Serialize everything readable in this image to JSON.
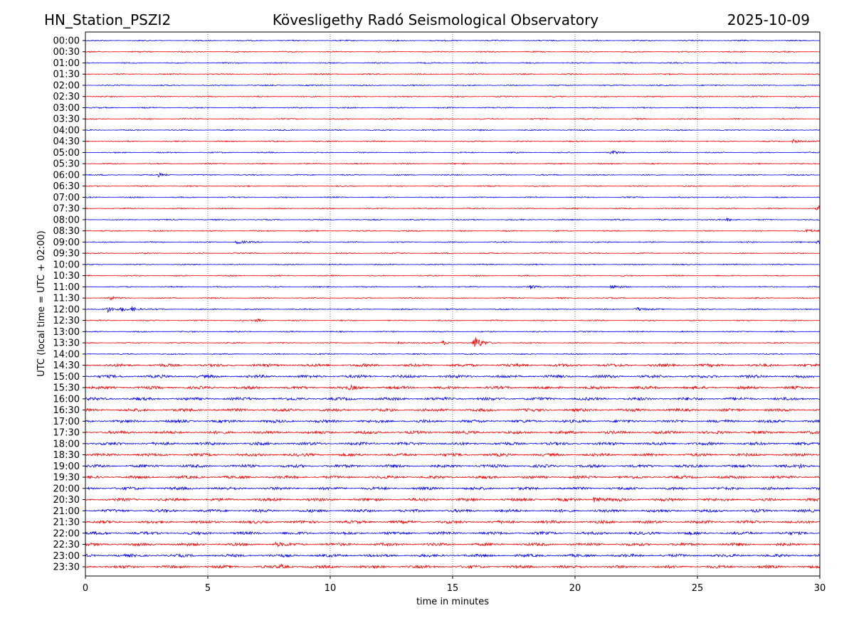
{
  "chart_data": {
    "type": "line",
    "subtype": "helicorder",
    "title_left": "HN_Station_PSZI2",
    "title": "Kövesligethy Radó Seismological Observatory",
    "title_right": "2025-10-09",
    "xlabel": "time in minutes",
    "ylabel": "UTC (local time = UTC + 02:00)",
    "xlim": [
      0,
      30
    ],
    "xticks": [
      "0",
      "5",
      "10",
      "15",
      "20",
      "25",
      "30"
    ],
    "xtick_values": [
      0,
      5,
      10,
      15,
      20,
      25,
      30
    ],
    "grid": "vertical dotted at 5-minute intervals",
    "series_colors": [
      "#0000ff",
      "#ff0000"
    ],
    "rows": [
      "00:00",
      "00:30",
      "01:00",
      "01:30",
      "02:00",
      "02:30",
      "03:00",
      "03:30",
      "04:00",
      "04:30",
      "05:00",
      "05:30",
      "06:00",
      "06:30",
      "07:00",
      "07:30",
      "08:00",
      "08:30",
      "09:00",
      "09:30",
      "10:00",
      "10:30",
      "11:00",
      "11:30",
      "12:00",
      "12:30",
      "13:00",
      "13:30",
      "14:00",
      "14:30",
      "15:00",
      "15:30",
      "16:00",
      "16:30",
      "17:00",
      "17:30",
      "18:00",
      "18:30",
      "19:00",
      "19:30",
      "20:00",
      "20:30",
      "21:00",
      "21:30",
      "22:00",
      "22:30",
      "23:00",
      "23:30"
    ],
    "noise_level": {
      "before_14_30": 0.6,
      "from_14_30": 1.5
    },
    "events": [
      {
        "row": "13:30",
        "minute": 15.9,
        "amplitude": 10
      },
      {
        "row": "13:30",
        "minute": 14.6,
        "amplitude": 3
      },
      {
        "row": "13:30",
        "minute": 12.8,
        "amplitude": 2
      },
      {
        "row": "07:30",
        "minute": 29.9,
        "amplitude": 4
      },
      {
        "row": "04:30",
        "minute": 28.9,
        "amplitude": 3
      },
      {
        "row": "11:00",
        "minute": 18.2,
        "amplitude": 3
      },
      {
        "row": "11:00",
        "minute": 21.5,
        "amplitude": 3
      },
      {
        "row": "09:00",
        "minute": 6.2,
        "amplitude": 3
      },
      {
        "row": "09:00",
        "minute": 29.9,
        "amplitude": 3
      },
      {
        "row": "12:00",
        "minute": 0.9,
        "amplitude": 4
      },
      {
        "row": "12:00",
        "minute": 1.5,
        "amplitude": 3
      },
      {
        "row": "12:00",
        "minute": 1.9,
        "amplitude": 3
      },
      {
        "row": "12:00",
        "minute": 22.5,
        "amplitude": 3
      },
      {
        "row": "20:30",
        "minute": 20.8,
        "amplitude": 4
      },
      {
        "row": "22:30",
        "minute": 7.8,
        "amplitude": 2
      },
      {
        "row": "23:30",
        "minute": 8.0,
        "amplitude": 2
      },
      {
        "row": "08:00",
        "minute": 26.2,
        "amplitude": 2
      },
      {
        "row": "08:30",
        "minute": 29.5,
        "amplitude": 2
      },
      {
        "row": "06:00",
        "minute": 3.0,
        "amplitude": 2
      },
      {
        "row": "05:00",
        "minute": 21.5,
        "amplitude": 2
      },
      {
        "row": "11:30",
        "minute": 1.0,
        "amplitude": 2
      },
      {
        "row": "12:30",
        "minute": 7.0,
        "amplitude": 2
      },
      {
        "row": "15:30",
        "minute": 10.8,
        "amplitude": 2
      },
      {
        "row": "19:00",
        "minute": 29.2,
        "amplitude": 2
      }
    ]
  }
}
